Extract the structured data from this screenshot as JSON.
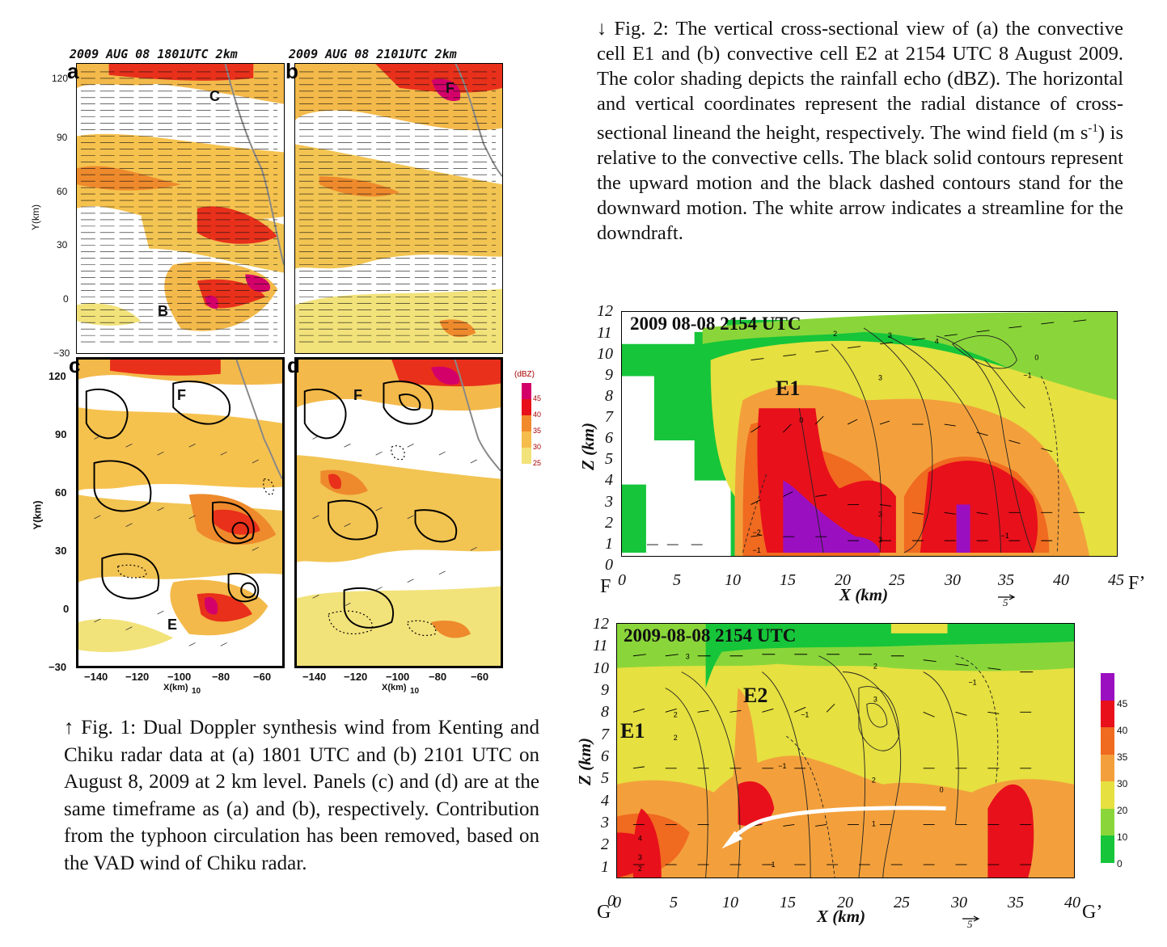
{
  "fig1": {
    "panel_a": {
      "label": "a",
      "title": "2009 AUG 08 1801UTC 2km",
      "cells": [
        "C",
        "B"
      ]
    },
    "panel_b": {
      "label": "b",
      "title": "2009 AUG 08 2101UTC 2km",
      "cells": [
        "F"
      ]
    },
    "panel_c": {
      "label": "c",
      "cells": [
        "F",
        "E"
      ]
    },
    "panel_d": {
      "label": "d",
      "cells": [
        "F"
      ]
    },
    "y_axis_label": "Y(km)",
    "y_ticks": [
      "120",
      "90",
      "60",
      "30",
      "0",
      "−30"
    ],
    "x_ticks": [
      "−140",
      "−120",
      "−100",
      "−80",
      "−60"
    ],
    "x_axis_label": "X(km)",
    "vector_scale": "10",
    "colorbar_unit": "(dBZ)",
    "colorbar_ticks": [
      "45",
      "40",
      "35",
      "30",
      "25"
    ],
    "colorbar_colors": [
      "#d4006a",
      "#e8101b",
      "#f08a2c",
      "#f6bd4c",
      "#f2e27a"
    ],
    "caption": "↑ Fig. 1: Dual Doppler synthesis wind from Kenting and Chiku radar data at (a) 1801 UTC and (b) 2101 UTC on August 8, 2009 at 2 km level. Panels (c) and (d) are at the same timeframe as (a) and (b), respectively. Contribution from the typhoon circulation has been removed, based on the VAD wind of Chiku radar."
  },
  "fig2": {
    "caption_pre": "↓ Fig. 2: The vertical cross-sectional view of (a) the convective cell E1 and (b) convective cell E2 at 2154 UTC 8 August 2009. The color shading depicts the rainfall echo (dBZ). The horizontal and vertical coordinates represent the radial distance of cross-sectional lineand the height, respectively. The wind field (m s",
    "caption_sup": "-1",
    "caption_post": ") is relative to the convective cells. The black solid contours represent the upward motion and the black dashed contours stand for the downward motion. The white arrow indicates a streamline for the downdraft.",
    "top": {
      "title": "2009 08-08 2154 UTC",
      "cell": "E1",
      "start_label": "F",
      "end_label": "F’",
      "x_ticks": [
        "0",
        "5",
        "10",
        "15",
        "20",
        "25",
        "30",
        "35",
        "40",
        "45"
      ],
      "y_ticks": [
        "12",
        "11",
        "10",
        "9",
        "8",
        "7",
        "6",
        "5",
        "4",
        "3",
        "2",
        "1",
        "0"
      ],
      "x_axis": "X (km)",
      "y_axis": "Z (km)",
      "vector_scale": "5",
      "contour_labels": [
        "2",
        "3",
        "4",
        "3",
        "2",
        "3",
        "0",
        "−1",
        "0",
        "−2",
        "−1",
        "3",
        "3",
        "−1"
      ]
    },
    "bottom": {
      "title": "2009-08-08 2154 UTC",
      "cells": [
        "E2",
        "E1"
      ],
      "start_label": "G",
      "end_label": "G’",
      "x_ticks": [
        "0",
        "5",
        "10",
        "15",
        "20",
        "25",
        "30",
        "35",
        "40"
      ],
      "y_ticks": [
        "12",
        "11",
        "10",
        "9",
        "8",
        "7",
        "6",
        "5",
        "4",
        "3",
        "2",
        "1",
        "0"
      ],
      "x_axis": "X (km)",
      "y_axis": "Z (km)",
      "vector_scale": "5",
      "contour_labels": [
        "3",
        "2",
        "2",
        "2",
        "3",
        "−1",
        "2",
        "−1",
        "−1",
        "2",
        "0",
        "1",
        "−1",
        "4",
        "3",
        "2"
      ],
      "colorbar_ticks": [
        "45",
        "40",
        "35",
        "30",
        "20",
        "10",
        "0"
      ],
      "colorbar_colors": [
        "#9a0fc0",
        "#e8101b",
        "#f06a20",
        "#f3a03c",
        "#e6e040",
        "#8ad63a",
        "#16c53a"
      ]
    }
  }
}
